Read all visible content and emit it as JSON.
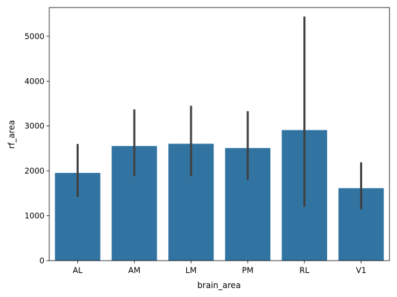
{
  "chart_data": {
    "type": "bar",
    "title": "",
    "xlabel": "brain_area",
    "ylabel": "rf_area",
    "categories": [
      "AL",
      "AM",
      "LM",
      "PM",
      "RL",
      "V1"
    ],
    "values": [
      1955,
      2555,
      2605,
      2510,
      2910,
      1615
    ],
    "error_low": [
      1420,
      1880,
      1880,
      1800,
      1200,
      1140
    ],
    "error_high": [
      2600,
      3370,
      3450,
      3330,
      5440,
      2190
    ],
    "ylim": [
      0,
      5640
    ],
    "yticks": [
      0,
      1000,
      2000,
      3000,
      4000,
      5000
    ],
    "grid": false,
    "bar_color": "#3274a1",
    "error_color": "#3f3f3f"
  }
}
